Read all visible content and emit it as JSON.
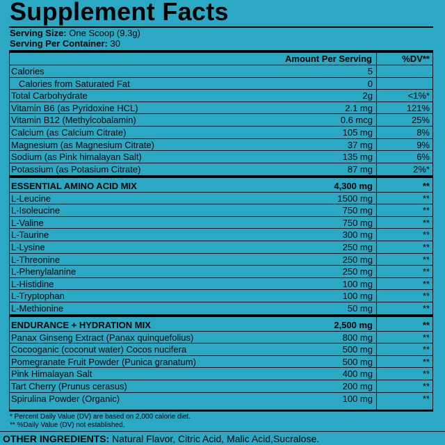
{
  "header": {
    "title": "Supplement Facts",
    "serving_size_label": "Serving Size:",
    "serving_size": "One Scoop (9.3g)",
    "servings_label": "Serving Per Container:",
    "servings": "30"
  },
  "table": {
    "columns": [
      "Amount Per Serving",
      "%DV**"
    ],
    "sections": [
      {
        "rows": [
          {
            "name": "Calories",
            "amount": "5"
          },
          {
            "name": "Calories from Saturated Fat",
            "amount": "0"
          },
          {
            "name": "Total Carbohydrate",
            "amount": "2g",
            "dv": "<1%*"
          },
          {
            "name": "Vitamin B6 (as Pyridoxine HCL)",
            "amount": "2.1 mg",
            "dv": "121%"
          },
          {
            "name": "Vitamin B12 (Methylcobalamin)",
            "amount": "0.6 mcg",
            "dv": "25%"
          },
          {
            "name": "Calcium (as Calcium Citrate)",
            "amount": "105 mg",
            "dv": "8%"
          },
          {
            "name": "Magnesium (as Magnesium Citrate)",
            "amount": "37 mg",
            "dv": "9%"
          },
          {
            "name": "Sodium (as Pink himalayan Salt)",
            "amount": "135 mg",
            "dv": "6%"
          },
          {
            "name": "Potassium (as Potasium Citrate)",
            "amount": "87 mg",
            "dv": "2%*"
          }
        ]
      },
      {
        "name": "ESSENTIAL AMINO ACID MIX",
        "amount": "4,300 mg",
        "dv": "**",
        "rows": [
          {
            "name": "L-Leucine",
            "amount": "1500 mg",
            "dv": "**"
          },
          {
            "name": "L-Isoleucine",
            "amount": "750 mg",
            "dv": "**"
          },
          {
            "name": "L-Valine",
            "amount": "750 mg",
            "dv": "**"
          },
          {
            "name": "L-Taurine",
            "amount": "300 mg",
            "dv": "**"
          },
          {
            "name": "L-Lysine",
            "amount": "250 mg",
            "dv": "**"
          },
          {
            "name": "L-Threonine",
            "amount": "250 mg",
            "dv": "**"
          },
          {
            "name": "L-Phenylalanine",
            "amount": "250 mg",
            "dv": "**"
          },
          {
            "name": "L-Histidine",
            "amount": "100 mg",
            "dv": "**"
          },
          {
            "name": "L-Tryptophan",
            "amount": "100 mg",
            "dv": "**"
          },
          {
            "name": "L-Methionine",
            "amount": "50 mg",
            "dv": "**"
          }
        ]
      },
      {
        "name": "ENDURANCE + HYDRATION MIX",
        "amount": "2,500 mg",
        "dv": "**",
        "rows": [
          {
            "name": "Panax Ginseng Extract (Panax quinquefolius)",
            "amount": "800 mg",
            "dv": "**"
          },
          {
            "name": "Cocooganic (coconut water) Cocos nucifera",
            "amount": "500 mg",
            "dv": "**"
          },
          {
            "name": "Pomegranate Fruit Powder (Punica granatum)",
            "amount": "500 mg",
            "dv": "**"
          },
          {
            "name": "Pink Himalayan Salt",
            "amount": "400 mg",
            "dv": "**"
          },
          {
            "name": "Tart Cherry (Prunus cerasus)",
            "amount": "200 mg",
            "dv": "**"
          },
          {
            "name": "Spirulina Powder (Organic)",
            "amount": "100 mg",
            "dv": "**"
          }
        ]
      }
    ]
  },
  "footnotes": [
    "* Percent Daily Value (DV) are based on 2,000 calorie diet.",
    "** %Daily Value (DV) not established."
  ],
  "other_ingredients": {
    "label": "OTHER INGREDIENTS:",
    "text": "Natural Flavor, Citric Acid, Malic Acid,Sucralose."
  }
}
